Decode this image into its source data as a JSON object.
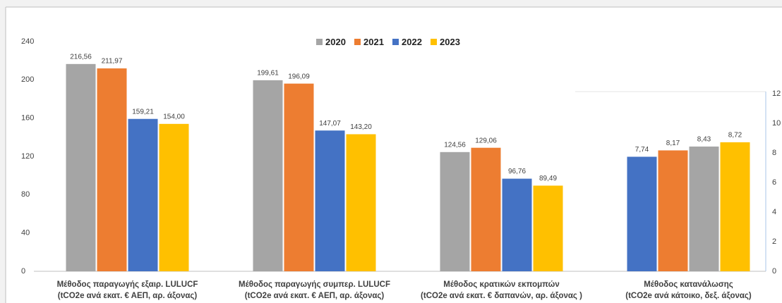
{
  "chart_data": {
    "type": "bar",
    "categories": [
      [
        "Μέθοδος παραγωγής εξαιρ. LULUCF",
        "(tCO2e ανά εκατ. € ΑΕΠ, αρ. άξονας)"
      ],
      [
        "Μέθοδος παραγωγής συμπερ. LULUCF",
        "(tCO2e ανά εκατ. € ΑΕΠ, αρ. άξονας)"
      ],
      [
        "Μέθοδος κρατικών εκπομπών",
        "(tCO2e ανά εκατ. € δαπανών, αρ. άξονας )"
      ],
      [
        "Μέθοδος κατανάλωσης",
        "(tCO2e ανά κάτοικο, δεξ. άξονας)"
      ]
    ],
    "series": [
      {
        "name": "2020",
        "color": "#a5a5a5",
        "values": [
          216.56,
          199.61,
          124.56,
          null
        ],
        "value_labels": [
          "216,56",
          "199,61",
          "124,56",
          null
        ]
      },
      {
        "name": "2021",
        "color": "#ed7d31",
        "values": [
          211.97,
          196.09,
          129.06,
          null
        ],
        "value_labels": [
          "211,97",
          "196,09",
          "129,06",
          null
        ]
      },
      {
        "name": "2022",
        "color": "#4472c4",
        "values": [
          159.21,
          147.07,
          96.76,
          null
        ],
        "value_labels": [
          "159,21",
          "147,07",
          "96,76",
          null
        ]
      },
      {
        "name": "2023",
        "color": "#ffc000",
        "values": [
          154.0,
          143.2,
          89.49,
          null
        ],
        "value_labels": [
          "154,00",
          "143,20",
          "89,49",
          null
        ]
      }
    ],
    "y2_bars": [
      {
        "color": "#4472c4",
        "axis": "y2",
        "value": 7.74,
        "value_label": "7,74"
      },
      {
        "color": "#ed7d31",
        "axis": "y2",
        "value": 8.17,
        "value_label": "8,17"
      },
      {
        "color": "#a5a5a5",
        "axis": "y2",
        "value": 8.43,
        "value_label": "8,43"
      },
      {
        "color": "#ffc000",
        "axis": "y2",
        "value": 8.72,
        "value_label": "8,72"
      }
    ],
    "ylim": [
      0,
      240
    ],
    "yticks": [
      0,
      40,
      80,
      120,
      160,
      200,
      240
    ],
    "y2lim": [
      0,
      12
    ],
    "y2ticks": [
      0,
      2,
      4,
      6,
      8,
      10,
      12
    ],
    "legend": "top"
  }
}
